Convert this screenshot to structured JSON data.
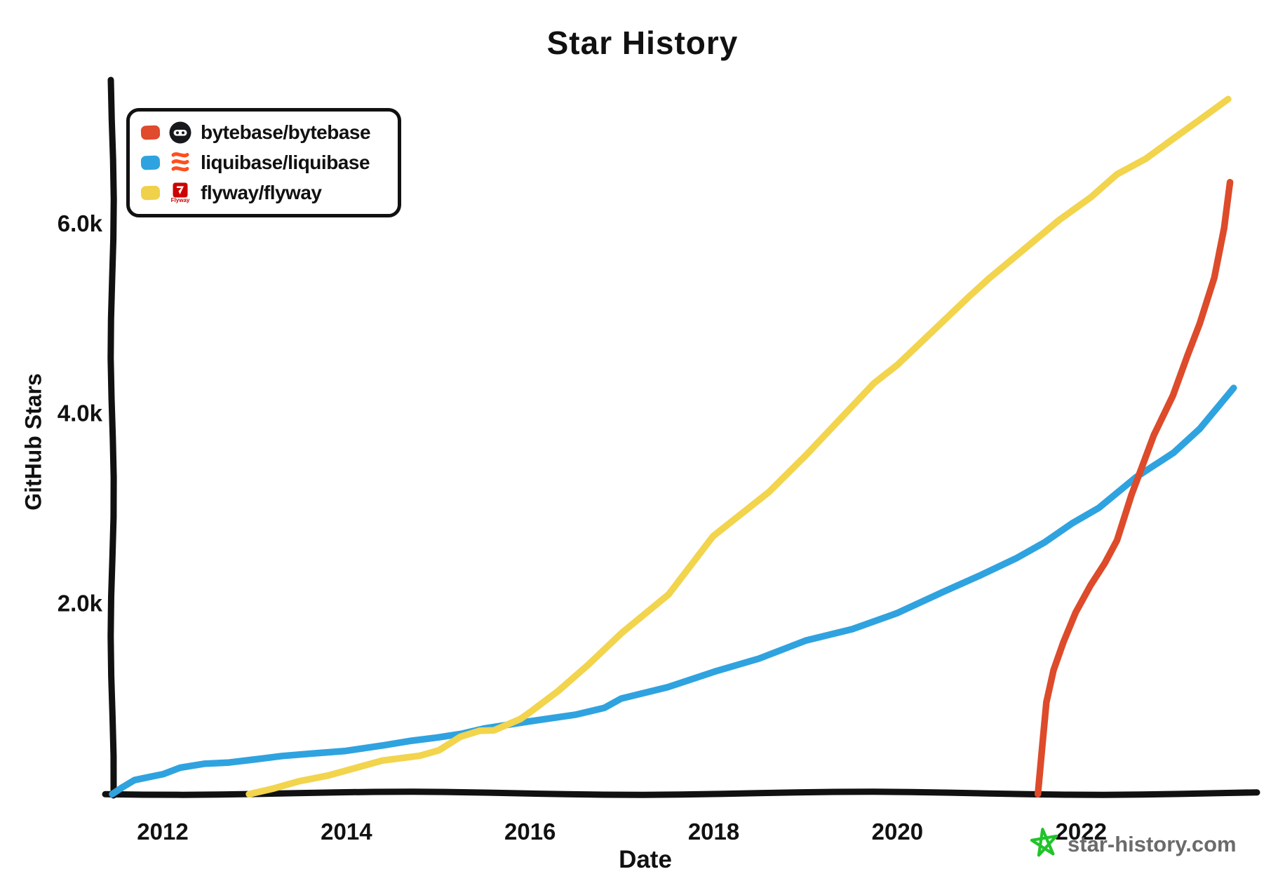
{
  "page": {
    "title": "Star History"
  },
  "legend": {
    "items": [
      {
        "label": "bytebase/bytebase",
        "swatch_color": "#E04A2D",
        "icon": "bytebase-avatar-icon"
      },
      {
        "label": "liquibase/liquibase",
        "swatch_color": "#2FA3DF",
        "icon": "liquibase-logo-icon"
      },
      {
        "label": "flyway/flyway",
        "swatch_color": "#F0D14A",
        "icon": "flyway-logo-icon"
      }
    ]
  },
  "watermark": {
    "label": "star-history.com",
    "text_color": "#6B6B6B",
    "star_color": "#22C32A",
    "flyway_logo_color": "#CC0202",
    "liquibase_logo_color": "#FF4E1F",
    "flyway_word": "Flyway"
  },
  "chart_data": {
    "type": "line",
    "title": "Star History",
    "xlabel": "Date",
    "ylabel": "GitHub Stars",
    "grid": false,
    "legend_position": "top-left",
    "axis_color": "#111111",
    "tick_color": "#111111",
    "xlim": [
      2011.45,
      2023.9
    ],
    "ylim": [
      0,
      7500
    ],
    "x_ticks": [
      {
        "value": 2012,
        "label": "2012"
      },
      {
        "value": 2014,
        "label": "2014"
      },
      {
        "value": 2016,
        "label": "2016"
      },
      {
        "value": 2018,
        "label": "2018"
      },
      {
        "value": 2020,
        "label": "2020"
      },
      {
        "value": 2022,
        "label": "2022"
      }
    ],
    "y_ticks": [
      {
        "value": 2000,
        "label": "2.0k"
      },
      {
        "value": 4000,
        "label": "4.0k"
      },
      {
        "value": 6000,
        "label": "6.0k"
      }
    ],
    "series": [
      {
        "name": "liquibase/liquibase",
        "color": "#2FA3DF",
        "points": [
          [
            2011.45,
            0
          ],
          [
            2011.55,
            60
          ],
          [
            2011.7,
            130
          ],
          [
            2011.85,
            175
          ],
          [
            2012.0,
            210
          ],
          [
            2012.2,
            265
          ],
          [
            2012.45,
            305
          ],
          [
            2012.7,
            330
          ],
          [
            2013.0,
            360
          ],
          [
            2013.3,
            385
          ],
          [
            2013.6,
            415
          ],
          [
            2014.0,
            455
          ],
          [
            2014.4,
            505
          ],
          [
            2014.7,
            545
          ],
          [
            2015.0,
            590
          ],
          [
            2015.25,
            635
          ],
          [
            2015.5,
            680
          ],
          [
            2016.0,
            750
          ],
          [
            2016.5,
            835
          ],
          [
            2016.8,
            905
          ],
          [
            2017.0,
            990
          ],
          [
            2017.5,
            1115
          ],
          [
            2018.0,
            1290
          ],
          [
            2018.5,
            1420
          ],
          [
            2019.0,
            1600
          ],
          [
            2019.5,
            1730
          ],
          [
            2020.0,
            1905
          ],
          [
            2020.5,
            2120
          ],
          [
            2020.9,
            2290
          ],
          [
            2021.3,
            2480
          ],
          [
            2021.6,
            2650
          ],
          [
            2021.9,
            2840
          ],
          [
            2022.2,
            3000
          ],
          [
            2022.6,
            3340
          ],
          [
            2023.0,
            3590
          ],
          [
            2023.3,
            3830
          ],
          [
            2023.66,
            4270
          ]
        ]
      },
      {
        "name": "flyway/flyway",
        "color": "#F2D44D",
        "points": [
          [
            2012.94,
            0
          ],
          [
            2013.2,
            50
          ],
          [
            2013.5,
            120
          ],
          [
            2013.8,
            190
          ],
          [
            2014.0,
            250
          ],
          [
            2014.4,
            340
          ],
          [
            2014.8,
            390
          ],
          [
            2015.0,
            460
          ],
          [
            2015.25,
            600
          ],
          [
            2015.45,
            650
          ],
          [
            2015.6,
            660
          ],
          [
            2015.9,
            790
          ],
          [
            2016.0,
            855
          ],
          [
            2016.3,
            1070
          ],
          [
            2016.64,
            1355
          ],
          [
            2017.0,
            1700
          ],
          [
            2017.5,
            2090
          ],
          [
            2018.0,
            2700
          ],
          [
            2018.6,
            3180
          ],
          [
            2019.0,
            3570
          ],
          [
            2019.75,
            4310
          ],
          [
            2020.0,
            4510
          ],
          [
            2020.76,
            5230
          ],
          [
            2021.0,
            5420
          ],
          [
            2021.76,
            6030
          ],
          [
            2022.1,
            6280
          ],
          [
            2022.4,
            6530
          ],
          [
            2022.7,
            6680
          ],
          [
            2023.0,
            6890
          ],
          [
            2023.3,
            7100
          ],
          [
            2023.6,
            7320
          ]
        ]
      },
      {
        "name": "bytebase/bytebase",
        "color": "#DD4B2B",
        "points": [
          [
            2021.53,
            0
          ],
          [
            2021.57,
            500
          ],
          [
            2021.63,
            950
          ],
          [
            2021.7,
            1300
          ],
          [
            2021.8,
            1600
          ],
          [
            2021.95,
            1900
          ],
          [
            2022.1,
            2180
          ],
          [
            2022.25,
            2430
          ],
          [
            2022.4,
            2670
          ],
          [
            2022.55,
            3140
          ],
          [
            2022.65,
            3420
          ],
          [
            2022.8,
            3780
          ],
          [
            2023.0,
            4190
          ],
          [
            2023.15,
            4600
          ],
          [
            2023.3,
            4950
          ],
          [
            2023.45,
            5440
          ],
          [
            2023.55,
            5950
          ],
          [
            2023.63,
            6430
          ]
        ]
      }
    ]
  }
}
